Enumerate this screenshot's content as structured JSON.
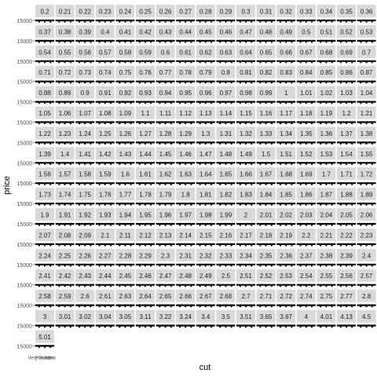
{
  "chart_data": {
    "type": "faceted-boxplot",
    "xlabel": "cut",
    "ylabel": "price",
    "y_tick_label": "15000",
    "x_tick_labels": [
      "Very Good",
      "Premium",
      "Ideal"
    ],
    "facet_labels": [
      "0.2",
      "0.21",
      "0.22",
      "0.23",
      "0.24",
      "0.25",
      "0.26",
      "0.27",
      "0.28",
      "0.29",
      "0.3",
      "0.31",
      "0.32",
      "0.33",
      "0.34",
      "0.35",
      "0.36",
      "0.37",
      "0.38",
      "0.39",
      "0.4",
      "0.41",
      "0.42",
      "0.43",
      "0.44",
      "0.45",
      "0.46",
      "0.47",
      "0.48",
      "0.49",
      "0.5",
      "0.51",
      "0.52",
      "0.53",
      "0.54",
      "0.55",
      "0.56",
      "0.57",
      "0.58",
      "0.59",
      "0.6",
      "0.61",
      "0.62",
      "0.63",
      "0.64",
      "0.65",
      "0.66",
      "0.67",
      "0.68",
      "0.69",
      "0.7",
      "0.71",
      "0.72",
      "0.73",
      "0.74",
      "0.75",
      "0.76",
      "0.77",
      "0.78",
      "0.79",
      "0.8",
      "0.81",
      "0.82",
      "0.83",
      "0.84",
      "0.85",
      "0.86",
      "0.87",
      "0.88",
      "0.89",
      "0.9",
      "0.91",
      "0.92",
      "0.93",
      "0.94",
      "0.95",
      "0.96",
      "0.97",
      "0.98",
      "0.99",
      "1",
      "1.01",
      "1.02",
      "1.03",
      "1.04",
      "1.05",
      "1.06",
      "1.07",
      "1.08",
      "1.09",
      "1.1",
      "1.11",
      "1.12",
      "1.13",
      "1.14",
      "1.15",
      "1.16",
      "1.17",
      "1.18",
      "1.19",
      "1.2",
      "1.21",
      "1.22",
      "1.23",
      "1.24",
      "1.25",
      "1.26",
      "1.27",
      "1.28",
      "1.29",
      "1.3",
      "1.31",
      "1.32",
      "1.33",
      "1.34",
      "1.35",
      "1.36",
      "1.37",
      "1.38",
      "1.39",
      "1.4",
      "1.41",
      "1.42",
      "1.43",
      "1.44",
      "1.45",
      "1.46",
      "1.47",
      "1.48",
      "1.49",
      "1.5",
      "1.51",
      "1.52",
      "1.53",
      "1.54",
      "1.55",
      "1.56",
      "1.57",
      "1.58",
      "1.59",
      "1.6",
      "1.61",
      "1.62",
      "1.63",
      "1.64",
      "1.65",
      "1.66",
      "1.67",
      "1.68",
      "1.69",
      "1.7",
      "1.71",
      "1.72",
      "1.73",
      "1.74",
      "1.75",
      "1.76",
      "1.77",
      "1.78",
      "1.79",
      "1.8",
      "1.81",
      "1.82",
      "1.83",
      "1.84",
      "1.85",
      "1.86",
      "1.87",
      "1.88",
      "1.89",
      "1.9",
      "1.91",
      "1.92",
      "1.93",
      "1.94",
      "1.95",
      "1.96",
      "1.97",
      "1.98",
      "1.99",
      "2",
      "2.01",
      "2.02",
      "2.03",
      "2.04",
      "2.05",
      "2.06",
      "2.07",
      "2.08",
      "2.09",
      "2.1",
      "2.11",
      "2.12",
      "2.13",
      "2.14",
      "2.15",
      "2.16",
      "2.17",
      "2.18",
      "2.19",
      "2.2",
      "2.21",
      "2.22",
      "2.23",
      "2.24",
      "2.25",
      "2.26",
      "2.27",
      "2.28",
      "2.29",
      "2.3",
      "2.31",
      "2.32",
      "2.33",
      "2.34",
      "2.35",
      "2.36",
      "2.37",
      "2.38",
      "2.39",
      "2.4",
      "2.41",
      "2.42",
      "2.43",
      "2.44",
      "2.45",
      "2.46",
      "2.47",
      "2.48",
      "2.49",
      "2.5",
      "2.51",
      "2.52",
      "2.53",
      "2.54",
      "2.55",
      "2.56",
      "2.57",
      "2.58",
      "2.59",
      "2.6",
      "2.61",
      "2.63",
      "2.64",
      "2.65",
      "2.66",
      "2.67",
      "2.68",
      "2.7",
      "2.71",
      "2.72",
      "2.74",
      "2.75",
      "2.77",
      "2.8",
      "3",
      "3.01",
      "3.02",
      "3.04",
      "3.05",
      "3.11",
      "3.22",
      "3.24",
      "3.4",
      "3.5",
      "3.51",
      "3.65",
      "3.67",
      "4",
      "4.01",
      "4.13",
      "4.5",
      "5.01"
    ],
    "grid": false,
    "colors": {
      "strip_background": "#d9d9d9",
      "strip_text": "#1a1a1a",
      "marks": "#000000",
      "axis_text": "#4d4d4d",
      "axis_title": "#000000"
    }
  }
}
